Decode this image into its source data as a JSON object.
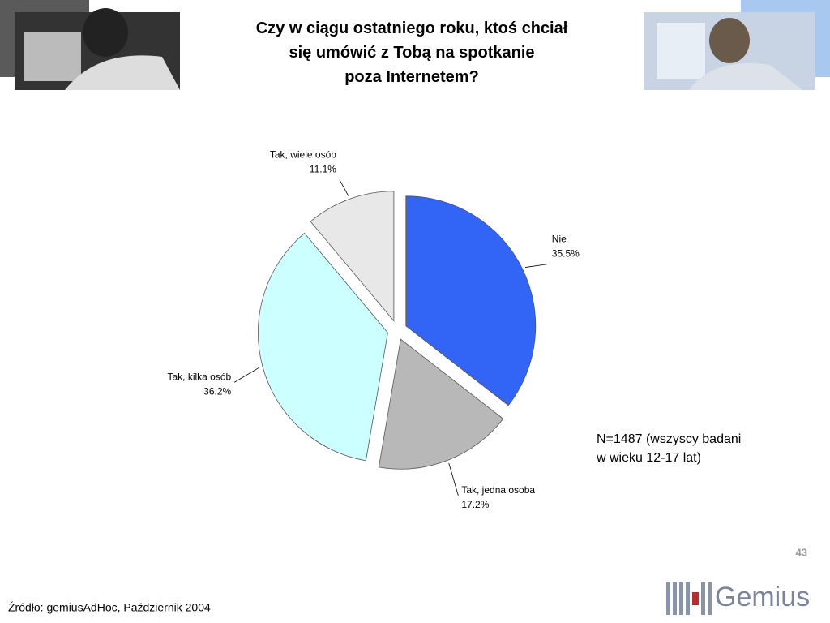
{
  "chart_data": {
    "type": "pie",
    "title": "Czy w ciągu ostatniego roku, ktoś chciał się umówić z Tobą na spotkanie poza Internetem?",
    "categories": [
      "Nie",
      "Tak, jedna osoba",
      "Tak, kilka osób",
      "Tak, wiele osób"
    ],
    "values": [
      35.5,
      17.2,
      36.2,
      11.1
    ],
    "value_labels": [
      "35.5%",
      "17.2%",
      "36.2%",
      "11.1%"
    ],
    "colors": [
      "#3264f5",
      "#b8b8b8",
      "#ccffff",
      "#e8e8e8"
    ],
    "note": [
      "N=1487 (wszyscy badani",
      "w wieku 12-17 lat)"
    ],
    "page_number": "43",
    "source": "Źródło: gemiusAdHoc, Październik 2004",
    "logo": "Gemius"
  }
}
